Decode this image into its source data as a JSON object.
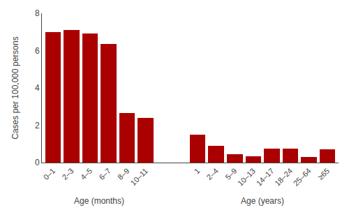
{
  "chart_data": {
    "type": "bar",
    "categories": [
      "0–1",
      "2–3",
      "4–5",
      "6–7",
      "8–9",
      "10–11",
      "1",
      "2–4",
      "5–9",
      "10–13",
      "14–17",
      "18–24",
      "25–64",
      "≥65"
    ],
    "values": [
      7.0,
      7.1,
      6.9,
      6.35,
      2.65,
      2.4,
      1.5,
      0.9,
      0.45,
      0.35,
      0.75,
      0.75,
      0.3,
      0.72
    ],
    "color": "#AA0000",
    "ylabel": "Cases per 100,000 persons",
    "ylim": [
      0,
      8
    ],
    "yticks": [
      0,
      2,
      4,
      6,
      8
    ],
    "grid": false,
    "annotations": [
      {
        "text": "Age (months)",
        "start": "0–1",
        "end": "10–11"
      },
      {
        "text": "Age (years)",
        "start": "1",
        "end": "≥65"
      }
    ]
  }
}
